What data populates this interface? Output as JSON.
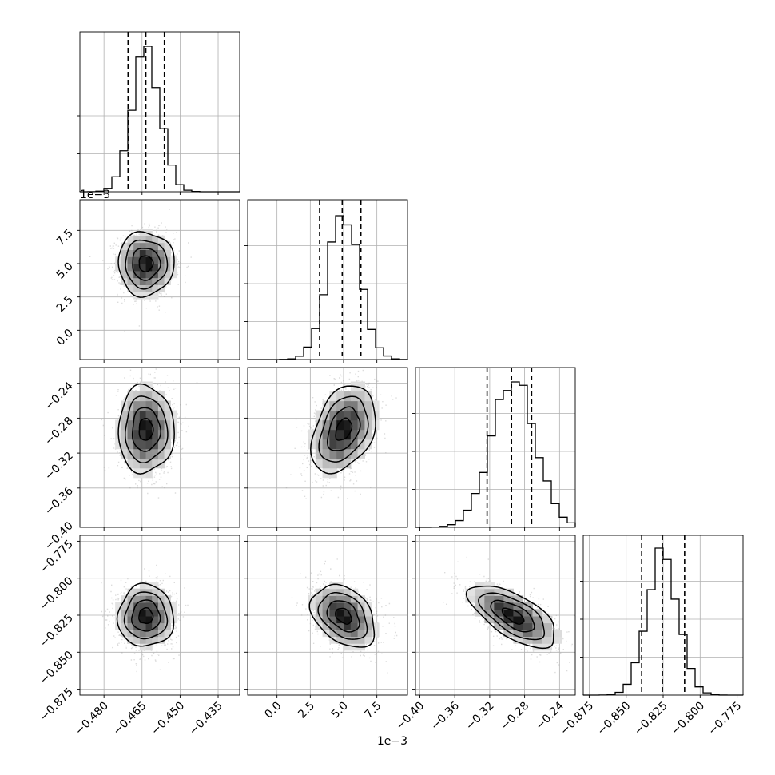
{
  "chart_data": {
    "type": "corner",
    "parameters": 4,
    "colors": {
      "hist": "#000000",
      "quantile": "#000000",
      "scatter": "#9a9a9a",
      "grid": "#b0b0b0",
      "contour": "#000000"
    },
    "grid": true,
    "axes": [
      {
        "range": [
          -0.4895,
          -0.4265
        ],
        "ticks": [
          -0.48,
          -0.465,
          -0.45,
          -0.435
        ],
        "tick_labels": [
          "−0.480",
          "−0.465",
          "−0.450",
          "−0.435"
        ],
        "offset_label": "",
        "mean": -0.4635,
        "sd": 0.0055,
        "quantiles": [
          -0.4705,
          -0.4635,
          -0.4562
        ],
        "hist_peak_y": 0.91
      },
      {
        "range": [
          -0.0022,
          0.0098
        ],
        "ticks": [
          0.0,
          0.0025,
          0.005,
          0.0075
        ],
        "tick_labels": [
          "0.0",
          "2.5",
          "5.0",
          "7.5"
        ],
        "offset_label": "1e−3",
        "mean": 0.005,
        "sd": 0.0012,
        "quantiles": [
          0.0032,
          0.0049,
          0.0063
        ],
        "hist_peak_y": 0.9
      },
      {
        "range": [
          -0.405,
          -0.222
        ],
        "ticks": [
          -0.4,
          -0.36,
          -0.32,
          -0.28,
          -0.24
        ],
        "tick_labels": [
          "−0.40",
          "−0.36",
          "−0.32",
          "−0.28",
          "−0.24"
        ],
        "offset_label": "",
        "mean": -0.293,
        "sd": 0.025,
        "quantiles": [
          -0.323,
          -0.295,
          -0.272
        ],
        "hist_peak_y": 0.91
      },
      {
        "range": [
          -0.879,
          -0.771
        ],
        "ticks": [
          -0.875,
          -0.85,
          -0.825,
          -0.8,
          -0.775
        ],
        "tick_labels": [
          "−0.875",
          "−0.850",
          "−0.825",
          "−0.800",
          "−0.775"
        ],
        "offset_label": "",
        "mean": -0.8255,
        "sd": 0.0105,
        "quantiles": [
          -0.8395,
          -0.8255,
          -0.8105
        ],
        "hist_peak_y": 0.92
      }
    ],
    "correlations": [
      [
        1.0,
        0.0,
        0.0,
        0.0
      ],
      [
        0.0,
        1.0,
        0.35,
        -0.35
      ],
      [
        0.0,
        0.35,
        1.0,
        -0.65
      ],
      [
        0.0,
        -0.35,
        -0.65,
        1.0
      ]
    ],
    "hist_bins": 20,
    "contour_levels_sigma": [
      0.5,
      1.0,
      1.5,
      2.0
    ]
  }
}
